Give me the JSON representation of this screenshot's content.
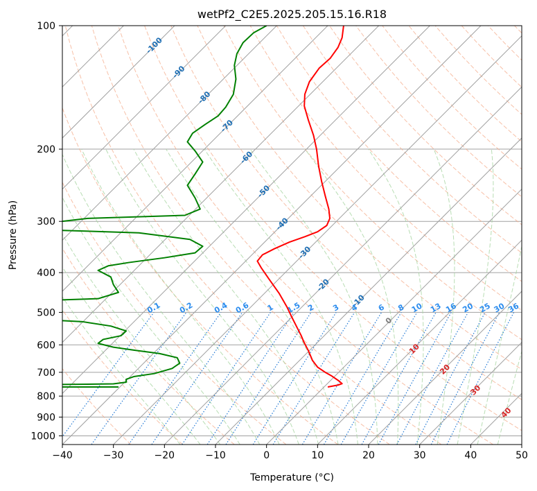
{
  "chart_data": {
    "type": "line",
    "title": "wetPf2_C2E5.2025.205.15.16.R18",
    "xlabel": "Temperature (°C)",
    "ylabel": "Pressure (hPa)",
    "xlim": [
      -40,
      50
    ],
    "ylim": [
      1050,
      100
    ],
    "y_scale": "log",
    "grid": true,
    "x_ticks": [
      "−40",
      "−30",
      "−20",
      "−10",
      "0",
      "10",
      "20",
      "30",
      "40",
      "50"
    ],
    "x_tick_values": [
      -40,
      -30,
      -20,
      -10,
      0,
      10,
      20,
      30,
      40,
      50
    ],
    "y_ticks": [
      "100",
      "200",
      "300",
      "400",
      "500",
      "600",
      "700",
      "800",
      "900",
      "1000"
    ],
    "y_tick_values": [
      100,
      200,
      300,
      400,
      500,
      600,
      700,
      800,
      900,
      1000
    ],
    "colors": {
      "temperature": "#ff0000",
      "dewpoint": "#008000",
      "isotherm": "#a0a0a0",
      "dry_adiabat": "#f4a582",
      "moist_adiabat": "#a6d5a0",
      "mixing_ratio": "#1f77d4",
      "isotherm_label": "#1f6fb4",
      "mixing_label": "#2b8cee",
      "moist_label": "#d62728",
      "zero_label": "#808080"
    },
    "isotherm_labels": [
      {
        "t": -100,
        "text": "-100"
      },
      {
        "t": -90,
        "text": "-90"
      },
      {
        "t": -80,
        "text": "-80"
      },
      {
        "t": -70,
        "text": "-70"
      },
      {
        "t": -60,
        "text": "-60"
      },
      {
        "t": -50,
        "text": "-50"
      },
      {
        "t": -40,
        "text": "-40"
      },
      {
        "t": -30,
        "text": "-30"
      },
      {
        "t": -20,
        "text": "-20"
      },
      {
        "t": -10,
        "text": "-10"
      }
    ],
    "mixing_ratio_labels": [
      "0.1",
      "0.2",
      "0.4",
      "0.6",
      "1",
      "1.5",
      "2",
      "3",
      "4",
      "6",
      "8",
      "10",
      "13",
      "16",
      "20",
      "25",
      "30",
      "36"
    ],
    "mixing_ratio_values": [
      0.1,
      0.2,
      0.4,
      0.6,
      1,
      1.5,
      2,
      3,
      4,
      6,
      8,
      10,
      13,
      16,
      20,
      25,
      30,
      36
    ],
    "moist_labels": [
      {
        "text": "0",
        "t": 24,
        "p": 525
      },
      {
        "text": "10",
        "t": 29,
        "p": 615
      },
      {
        "text": "20",
        "t": 35,
        "p": 690
      },
      {
        "text": "30",
        "t": 41,
        "p": 775
      },
      {
        "text": "40",
        "t": 47,
        "p": 880
      }
    ],
    "series": [
      {
        "name": "",
        "role": "temperature",
        "points": [
          [
            12,
            760
          ],
          [
            14,
            752
          ],
          [
            14.8,
            746
          ],
          [
            14.2,
            735
          ],
          [
            12.8,
            715
          ],
          [
            11.5,
            700
          ],
          [
            10,
            680
          ],
          [
            9,
            655
          ],
          [
            8.2,
            620
          ],
          [
            7.3,
            590
          ],
          [
            6.8,
            570
          ],
          [
            6,
            545
          ],
          [
            5,
            515
          ],
          [
            4,
            485
          ],
          [
            2.5,
            450
          ],
          [
            0.5,
            415
          ],
          [
            -1,
            390
          ],
          [
            -1.8,
            375
          ],
          [
            -0.8,
            362
          ],
          [
            1.5,
            350
          ],
          [
            4.5,
            337
          ],
          [
            7.5,
            327
          ],
          [
            10,
            318
          ],
          [
            11.8,
            307
          ],
          [
            12.4,
            295
          ],
          [
            12.2,
            280
          ],
          [
            11.5,
            260
          ],
          [
            10.8,
            240
          ],
          [
            10.2,
            220
          ],
          [
            9.8,
            200
          ],
          [
            9.2,
            185
          ],
          [
            8.2,
            170
          ],
          [
            7.4,
            157
          ],
          [
            7.5,
            147
          ],
          [
            8.4,
            137
          ],
          [
            10.3,
            127
          ],
          [
            12.5,
            120
          ],
          [
            14,
            113
          ],
          [
            14.8,
            107
          ],
          [
            15.1,
            100
          ]
        ]
      },
      {
        "name": "",
        "role": "dewpoint",
        "points": [
          [
            -29,
            760
          ],
          [
            -55,
            760
          ],
          [
            -50,
            752
          ],
          [
            -30,
            747
          ],
          [
            -27.5,
            740
          ],
          [
            -27.5,
            728
          ],
          [
            -26,
            717
          ],
          [
            -22,
            705
          ],
          [
            -18.5,
            685
          ],
          [
            -17,
            665
          ],
          [
            -17.5,
            645
          ],
          [
            -21,
            630
          ],
          [
            -26,
            618
          ],
          [
            -30,
            608
          ],
          [
            -33,
            595
          ],
          [
            -32,
            582
          ],
          [
            -28.5,
            570
          ],
          [
            -27.5,
            555
          ],
          [
            -30.5,
            540
          ],
          [
            -36,
            527
          ],
          [
            -45,
            520
          ],
          [
            -40,
            497
          ],
          [
            -49,
            470
          ],
          [
            -33,
            463
          ],
          [
            -29,
            447
          ],
          [
            -30,
            428
          ],
          [
            -30.5,
            410
          ],
          [
            -33,
            395
          ],
          [
            -31,
            385
          ],
          [
            -27,
            378
          ],
          [
            -20,
            368
          ],
          [
            -14,
            358
          ],
          [
            -12.5,
            345
          ],
          [
            -15,
            332
          ],
          [
            -25,
            320
          ],
          [
            -42,
            315
          ],
          [
            -45,
            305
          ],
          [
            -35,
            295
          ],
          [
            -16,
            290
          ],
          [
            -13,
            280
          ],
          [
            -14,
            263
          ],
          [
            -15.5,
            245
          ],
          [
            -14,
            230
          ],
          [
            -12.5,
            215
          ],
          [
            -14,
            202
          ],
          [
            -15.5,
            192
          ],
          [
            -14.5,
            183
          ],
          [
            -12,
            174
          ],
          [
            -9.5,
            166
          ],
          [
            -8,
            158
          ],
          [
            -6.5,
            147
          ],
          [
            -6,
            135
          ],
          [
            -6.3,
            125
          ],
          [
            -5.8,
            117
          ],
          [
            -4.6,
            110
          ],
          [
            -2.5,
            104
          ],
          [
            0,
            100
          ]
        ]
      }
    ]
  }
}
